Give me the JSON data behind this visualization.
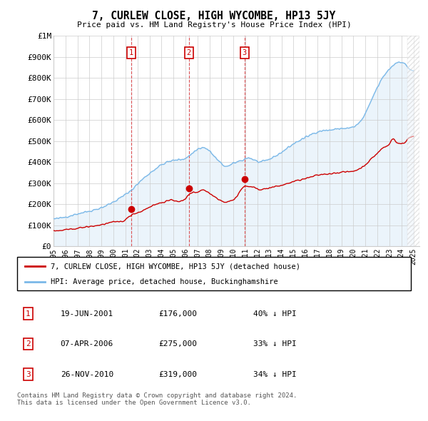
{
  "title": "7, CURLEW CLOSE, HIGH WYCOMBE, HP13 5JY",
  "subtitle": "Price paid vs. HM Land Registry's House Price Index (HPI)",
  "xlim": [
    1995.0,
    2025.5
  ],
  "ylim": [
    0,
    1000000
  ],
  "yticks": [
    0,
    100000,
    200000,
    300000,
    400000,
    500000,
    600000,
    700000,
    800000,
    900000,
    1000000
  ],
  "ytick_labels": [
    "£0",
    "£100K",
    "£200K",
    "£300K",
    "£400K",
    "£500K",
    "£600K",
    "£700K",
    "£800K",
    "£900K",
    "£1M"
  ],
  "sale_dates": [
    2001.47,
    2006.27,
    2010.91
  ],
  "sale_prices": [
    176000,
    275000,
    319000
  ],
  "sale_labels": [
    "1",
    "2",
    "3"
  ],
  "hpi_color": "#7ab8e8",
  "hpi_fill_color": "#d8eaf8",
  "sale_color": "#cc0000",
  "dashed_line_color": "#dd4444",
  "background_color": "#ffffff",
  "grid_color": "#cccccc",
  "legend_entries": [
    "7, CURLEW CLOSE, HIGH WYCOMBE, HP13 5JY (detached house)",
    "HPI: Average price, detached house, Buckinghamshire"
  ],
  "table_rows": [
    {
      "label": "1",
      "date": "19-JUN-2001",
      "price": "£176,000",
      "change": "40% ↓ HPI"
    },
    {
      "label": "2",
      "date": "07-APR-2006",
      "price": "£275,000",
      "change": "33% ↓ HPI"
    },
    {
      "label": "3",
      "date": "26-NOV-2010",
      "price": "£319,000",
      "change": "34% ↓ HPI"
    }
  ],
  "footnote": "Contains HM Land Registry data © Crown copyright and database right 2024.\nThis data is licensed under the Open Government Licence v3.0."
}
